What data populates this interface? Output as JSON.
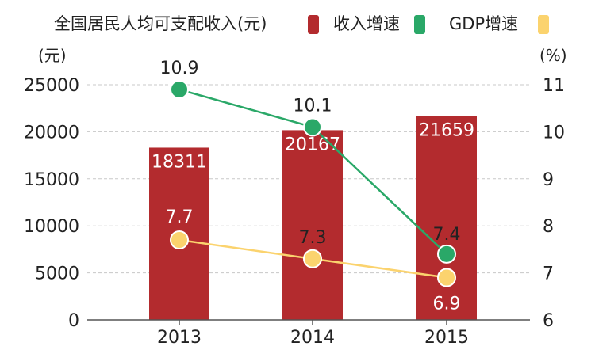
{
  "chart_data": {
    "type": "bar",
    "categories": [
      "2013",
      "2014",
      "2015"
    ],
    "series": [
      {
        "name": "全国居民人均可支配收入(元)",
        "type": "bar",
        "axis": "left",
        "values": [
          18311,
          20167,
          21659
        ],
        "color": "#b32b2e",
        "labels": [
          "18311",
          "20167",
          "21659"
        ]
      },
      {
        "name": "收入增速",
        "type": "line",
        "axis": "right",
        "values": [
          10.9,
          10.1,
          7.4
        ],
        "color": "#2aa868",
        "labels": [
          "10.9",
          "10.1",
          "7.4"
        ]
      },
      {
        "name": "GDP增速",
        "type": "line",
        "axis": "right",
        "values": [
          7.7,
          7.3,
          6.9
        ],
        "color": "#fbd36e",
        "labels": [
          "7.7",
          "7.3",
          "6.9"
        ]
      }
    ],
    "y_left": {
      "unit": "(元)",
      "ylim": [
        0,
        25000
      ],
      "ticks": [
        "0",
        "5000",
        "10000",
        "15000",
        "20000",
        "25000"
      ]
    },
    "y_right": {
      "unit": "(%)",
      "ylim": [
        6,
        11
      ],
      "ticks": [
        "6",
        "7",
        "8",
        "9",
        "10",
        "11"
      ]
    },
    "grid": true,
    "legend_position": "top"
  }
}
